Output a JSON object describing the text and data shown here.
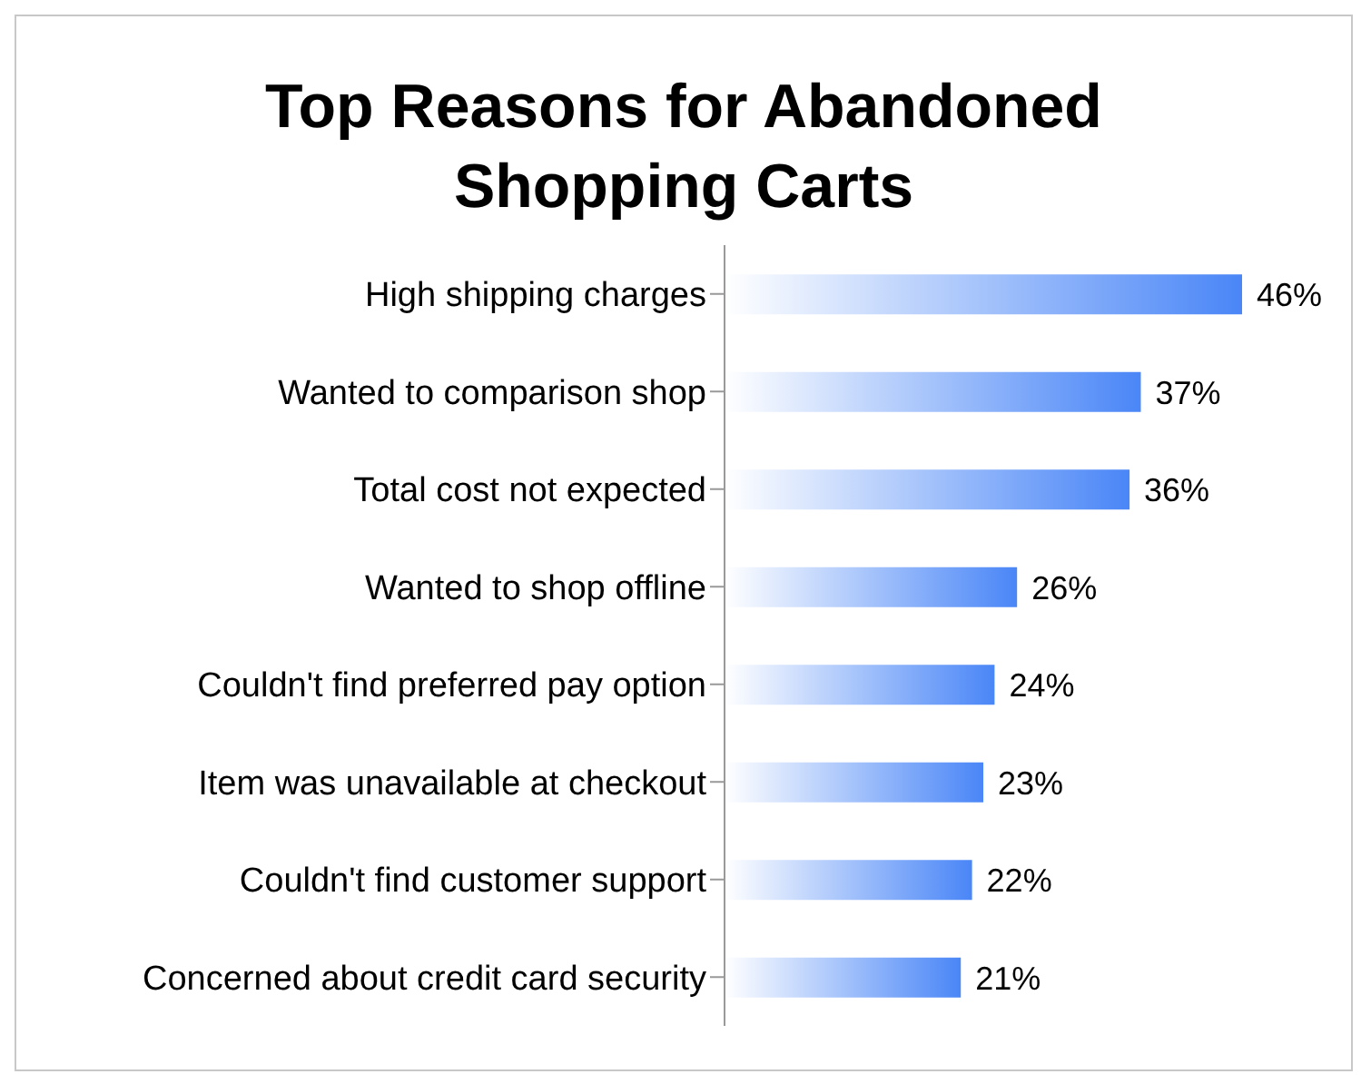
{
  "chart_data": {
    "type": "bar",
    "orientation": "horizontal",
    "title": "Top Reasons for Abandoned Shopping Carts",
    "categories": [
      "High shipping charges",
      "Wanted to comparison shop",
      "Total cost not expected",
      "Wanted to shop offline",
      "Couldn't find preferred pay option",
      "Item was unavailable at checkout",
      "Couldn't find customer support",
      "Concerned about credit card security"
    ],
    "values": [
      46,
      37,
      36,
      26,
      24,
      23,
      22,
      21
    ],
    "value_labels": [
      "46%",
      "37%",
      "36%",
      "26%",
      "24%",
      "23%",
      "22%",
      "21%"
    ],
    "color": "#4a86f7",
    "grid": false,
    "legend": false
  }
}
